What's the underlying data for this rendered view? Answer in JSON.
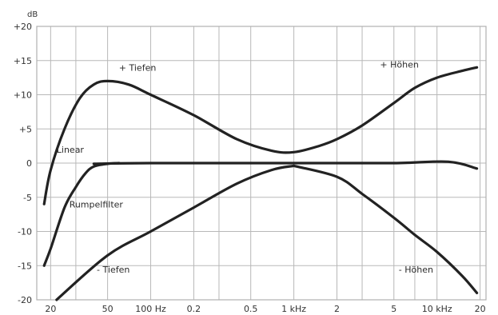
{
  "chart_data": {
    "type": "line",
    "ylabel": "dB",
    "xscale": "log",
    "xlim_hz": [
      16,
      22000
    ],
    "ylim": [
      -20,
      20
    ],
    "grid": true,
    "y_ticks": [
      {
        "value": 20,
        "label": "+20"
      },
      {
        "value": 15,
        "label": "+15"
      },
      {
        "value": 10,
        "label": "+10"
      },
      {
        "value": 5,
        "label": "+5"
      },
      {
        "value": 0,
        "label": "0"
      },
      {
        "value": -5,
        "label": "-5"
      },
      {
        "value": -10,
        "label": "-10"
      },
      {
        "value": -15,
        "label": "-15"
      },
      {
        "value": -20,
        "label": "-20"
      }
    ],
    "x_ticks": [
      {
        "hz": 20,
        "label": "20"
      },
      {
        "hz": 50,
        "label": "50"
      },
      {
        "hz": 100,
        "label": "100 Hz"
      },
      {
        "hz": 200,
        "label": "0.2"
      },
      {
        "hz": 500,
        "label": "0.5"
      },
      {
        "hz": 1000,
        "label": "1 kHz"
      },
      {
        "hz": 2000,
        "label": "2"
      },
      {
        "hz": 5000,
        "label": "5"
      },
      {
        "hz": 10000,
        "label": "10 kHz"
      },
      {
        "hz": 20000,
        "label": "20"
      }
    ],
    "x_gridlines_hz": [
      20,
      30,
      50,
      100,
      200,
      300,
      500,
      1000,
      2000,
      3000,
      5000,
      7000,
      10000,
      20000
    ],
    "series": [
      {
        "name": "+ Tiefen",
        "label_at": {
          "hz": 60,
          "db": 13.5
        },
        "points": [
          [
            18,
            -6
          ],
          [
            20,
            -1
          ],
          [
            25,
            5
          ],
          [
            32,
            9.5
          ],
          [
            40,
            11.5
          ],
          [
            50,
            12
          ],
          [
            70,
            11.5
          ],
          [
            100,
            10
          ],
          [
            200,
            7
          ],
          [
            400,
            3.5
          ],
          [
            700,
            1.8
          ],
          [
            1000,
            1.6
          ],
          [
            1500,
            2.5
          ],
          [
            2000,
            3.5
          ],
          [
            3000,
            5.5
          ],
          [
            5000,
            8.8
          ],
          [
            7000,
            11
          ],
          [
            10000,
            12.5
          ],
          [
            15000,
            13.5
          ],
          [
            19000,
            14
          ]
        ]
      },
      {
        "name": "+ Höhen",
        "label_at": {
          "hz": 4000,
          "db": 14
        },
        "points": [
          [
            1000,
            1.6
          ],
          [
            19000,
            14
          ]
        ]
      },
      {
        "name": "Linear",
        "label_at": {
          "hz": 22,
          "db": 1.5
        },
        "points": [
          [
            40,
            -0.1
          ],
          [
            100,
            0
          ],
          [
            1000,
            0
          ],
          [
            5000,
            0
          ],
          [
            12000,
            0.2
          ],
          [
            19000,
            -0.8
          ]
        ]
      },
      {
        "name": "Rumpelfilter",
        "label_at": {
          "hz": 27,
          "db": -6.5
        },
        "points": [
          [
            18,
            -15
          ],
          [
            20,
            -12.5
          ],
          [
            25,
            -6.5
          ],
          [
            30,
            -3.5
          ],
          [
            35,
            -1.5
          ],
          [
            40,
            -0.5
          ],
          [
            50,
            -0.1
          ],
          [
            60,
            0
          ]
        ]
      },
      {
        "name": "- Tiefen",
        "label_at": {
          "hz": 42,
          "db": -16
        },
        "points": [
          [
            22,
            -20
          ],
          [
            50,
            -13.5
          ],
          [
            100,
            -10
          ],
          [
            200,
            -6.5
          ],
          [
            400,
            -3
          ],
          [
            700,
            -1
          ],
          [
            1000,
            -0.4
          ]
        ]
      },
      {
        "name": "- Höhen",
        "label_at": {
          "hz": 5400,
          "db": -16
        },
        "points": [
          [
            1000,
            -0.4
          ],
          [
            2000,
            -2
          ],
          [
            3000,
            -4.5
          ],
          [
            5000,
            -8
          ],
          [
            7000,
            -10.5
          ],
          [
            10000,
            -13
          ],
          [
            15000,
            -16.5
          ],
          [
            19000,
            -19
          ]
        ]
      }
    ]
  }
}
